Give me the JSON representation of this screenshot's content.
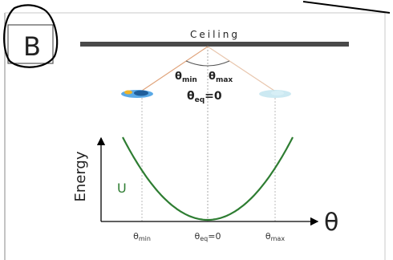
{
  "panel": {
    "label": "B"
  },
  "ceiling": {
    "label": "Ceiling"
  },
  "pendulum": {
    "theta_min_label": {
      "main": "θ",
      "sub": "min"
    },
    "theta_max_label": {
      "main": "θ",
      "sub": "max"
    },
    "equilibrium_label": {
      "main": "θ",
      "sub": "eq",
      "suffix": "=0"
    },
    "rest_color": "#5aa9e6",
    "ghost_color": "#bfe3ef",
    "string_color": "#e0a37a"
  },
  "plot": {
    "ylabel": "Energy",
    "curve_label": "U",
    "xlabel": "θ",
    "curve_color": "#2e7d32",
    "ticks": [
      {
        "main": "θ",
        "sub": "min",
        "suffix": ""
      },
      {
        "main": "θ",
        "sub": "eq",
        "suffix": "=0"
      },
      {
        "main": "θ",
        "sub": "max",
        "suffix": ""
      }
    ]
  }
}
